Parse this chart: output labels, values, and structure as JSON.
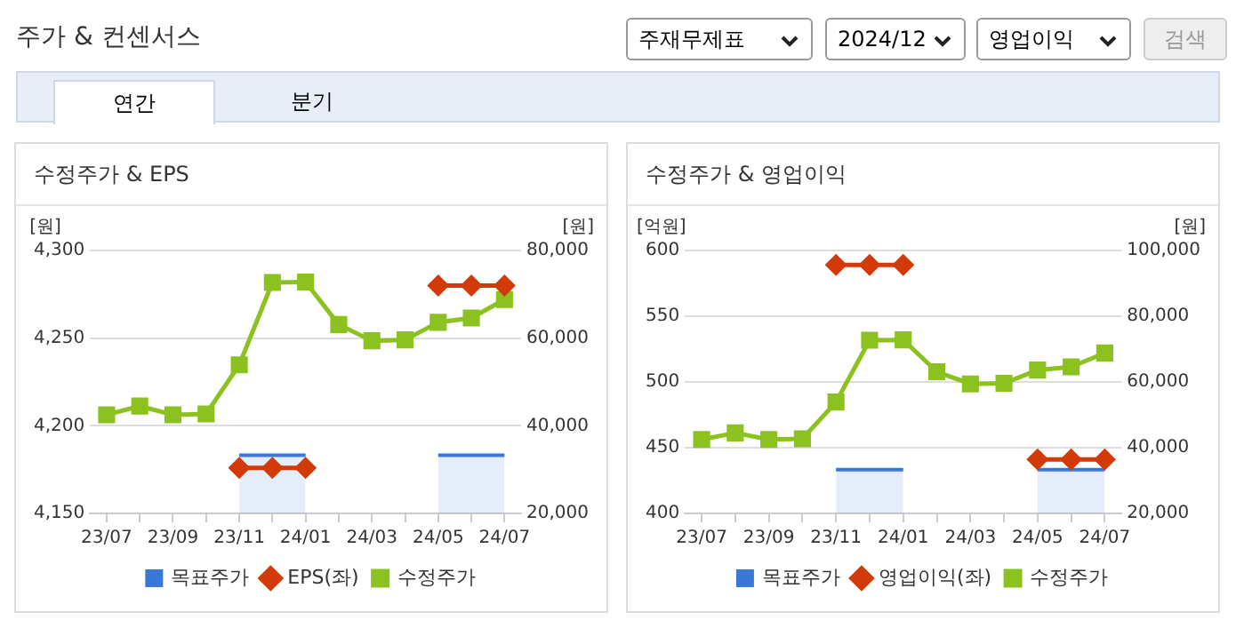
{
  "chart_data": [
    {
      "type": "other",
      "title": "주가 & 컨센서스",
      "annotations": [
        "주재무제표",
        "2024/12",
        "영업이익",
        "검색",
        "연간",
        "분기"
      ]
    },
    {
      "type": "line",
      "title": "수정주가 & EPS",
      "ylabel": "[원]",
      "y2label": "[원]",
      "categories": [
        "23/07",
        null,
        "23/09",
        null,
        "23/11",
        null,
        "24/01",
        null,
        "24/03",
        null,
        "24/05",
        null,
        "24/07"
      ],
      "series": [
        {
          "name": "목표주가",
          "type": "area",
          "axis": "y2",
          "color": "#3a78d8",
          "marker": "none",
          "values": [
            null,
            null,
            null,
            null,
            33300,
            33300,
            33300,
            null,
            null,
            null,
            33300,
            33300,
            33300
          ]
        },
        {
          "name": "EPS(좌)",
          "type": "line",
          "axis": "y",
          "color": "#d33a0a",
          "marker": "diamond",
          "values": [
            null,
            null,
            null,
            null,
            4176,
            4176,
            4176,
            null,
            null,
            null,
            4280,
            4280,
            4280
          ]
        },
        {
          "name": "수정주가",
          "type": "line",
          "axis": "y2",
          "color": "#8cc21f",
          "marker": "square",
          "values": [
            42500,
            44500,
            42500,
            42700,
            53900,
            72700,
            72800,
            63100,
            59400,
            59600,
            63600,
            64600,
            68800
          ]
        }
      ],
      "ylim": [
        4150,
        4300
      ],
      "yticks": [
        {
          "value": 4150,
          "label": "4,150"
        },
        {
          "value": 4200,
          "label": "4,200"
        },
        {
          "value": 4250,
          "label": "4,250"
        },
        {
          "value": 4300,
          "label": "4,300"
        }
      ],
      "y2lim": [
        20000,
        80000
      ],
      "y2ticks": [
        {
          "value": 20000,
          "label": "20,000"
        },
        {
          "value": 40000,
          "label": "40,000"
        },
        {
          "value": 60000,
          "label": "60,000"
        },
        {
          "value": 80000,
          "label": "80,000"
        }
      ],
      "grid": "y",
      "legend": "bottom"
    },
    {
      "type": "line",
      "title": "수정주가 & 영업이익",
      "ylabel": "[억원]",
      "y2label": "[원]",
      "categories": [
        "23/07",
        null,
        "23/09",
        null,
        "23/11",
        null,
        "24/01",
        null,
        "24/03",
        null,
        "24/05",
        null,
        "24/07"
      ],
      "series": [
        {
          "name": "목표주가",
          "type": "area",
          "axis": "y2",
          "color": "#3a78d8",
          "marker": "none",
          "values": [
            null,
            null,
            null,
            null,
            33300,
            33300,
            33300,
            null,
            null,
            null,
            33300,
            33300,
            33300
          ]
        },
        {
          "name": "영업이익(좌)",
          "type": "line",
          "axis": "y",
          "color": "#d33a0a",
          "marker": "diamond",
          "values": [
            null,
            null,
            null,
            null,
            589,
            589,
            589,
            null,
            null,
            null,
            441,
            441,
            441
          ]
        },
        {
          "name": "수정주가",
          "type": "line",
          "axis": "y2",
          "color": "#8cc21f",
          "marker": "square",
          "values": [
            42500,
            44500,
            42500,
            42700,
            53900,
            72700,
            72800,
            63100,
            59400,
            59600,
            63600,
            64600,
            68800
          ]
        }
      ],
      "ylim": [
        400,
        600
      ],
      "yticks": [
        400,
        450,
        500,
        550,
        600
      ],
      "y2lim": [
        20000,
        100000
      ],
      "y2ticks": [
        {
          "value": 20000,
          "label": "20,000"
        },
        {
          "value": 40000,
          "label": "40,000"
        },
        {
          "value": 60000,
          "label": "60,000"
        },
        {
          "value": 80000,
          "label": "80,000"
        },
        {
          "value": 100000,
          "label": "100,000"
        }
      ],
      "grid": "y",
      "legend": "bottom"
    }
  ]
}
